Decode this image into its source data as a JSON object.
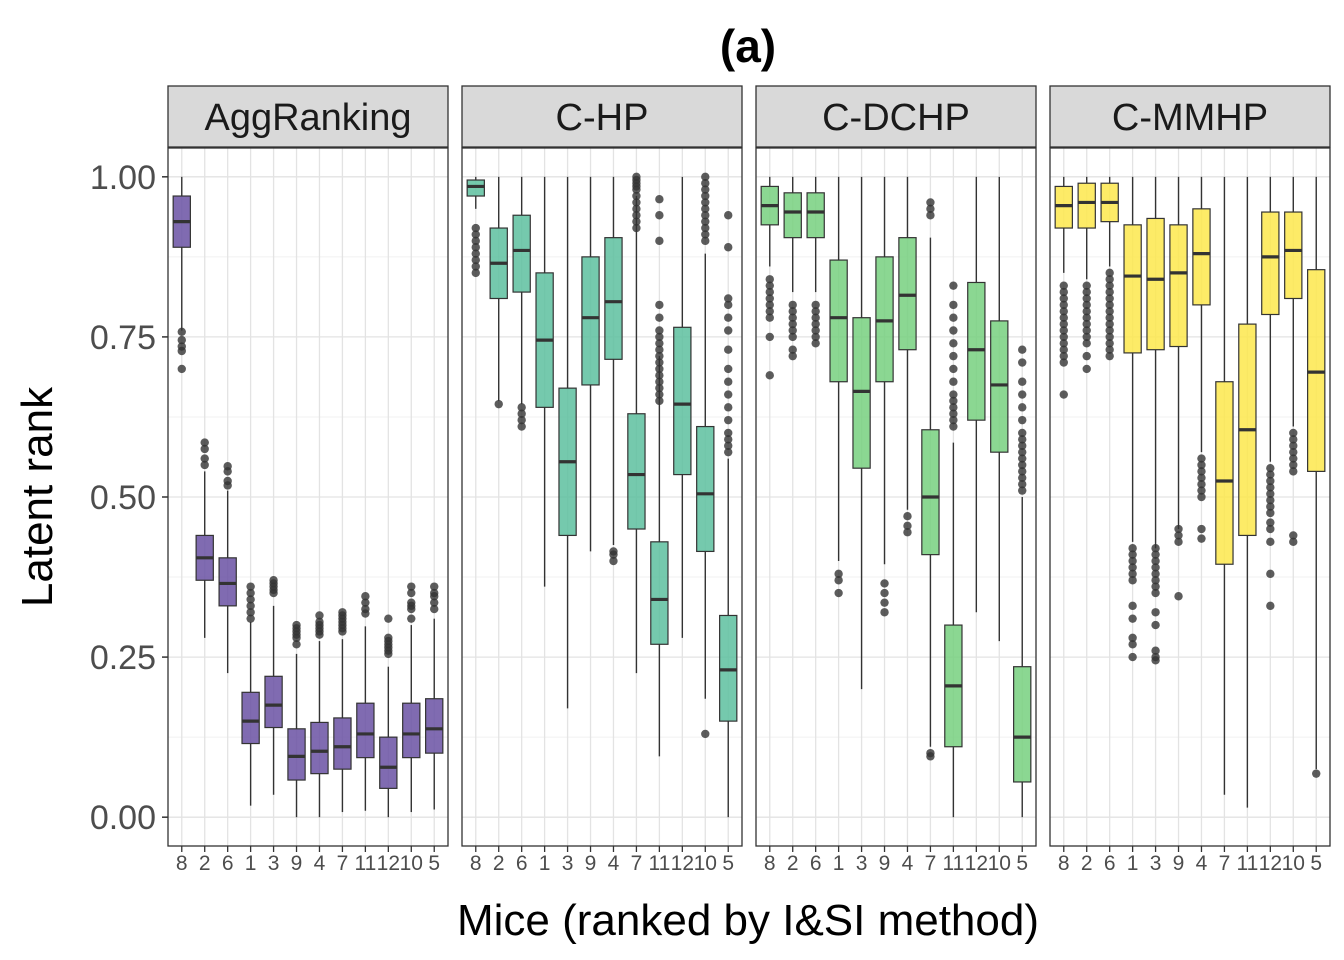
{
  "chart_data": {
    "type": "boxplot",
    "title": "(a)",
    "xlabel": "Mice (ranked by I&SI method)",
    "ylabel": "Latent rank",
    "ylim": [
      -0.045,
      1.045
    ],
    "yticks": [
      0,
      0.25,
      0.5,
      0.75,
      1.0
    ],
    "ytick_labels": [
      "0.00",
      "0.25",
      "0.50",
      "0.75",
      "1.00"
    ],
    "categories": [
      "8",
      "2",
      "6",
      "1",
      "3",
      "9",
      "4",
      "7",
      "11",
      "12",
      "10",
      "5"
    ],
    "panels": [
      {
        "name": "AggRanking",
        "color": "#6A51A3",
        "boxes": [
          {
            "q1": 0.89,
            "med": 0.93,
            "q3": 0.97,
            "lo": 0.76,
            "hi": 1.0,
            "out": [
              0.758,
              0.745,
              0.735,
              0.728,
              0.7
            ]
          },
          {
            "q1": 0.37,
            "med": 0.405,
            "q3": 0.44,
            "lo": 0.28,
            "hi": 0.54,
            "out": [
              0.585,
              0.575,
              0.56,
              0.55
            ]
          },
          {
            "q1": 0.33,
            "med": 0.365,
            "q3": 0.405,
            "lo": 0.225,
            "hi": 0.51,
            "out": [
              0.548,
              0.54,
              0.525,
              0.518
            ]
          },
          {
            "q1": 0.115,
            "med": 0.15,
            "q3": 0.195,
            "lo": 0.018,
            "hi": 0.305,
            "out": [
              0.36,
              0.35,
              0.34,
              0.33,
              0.32,
              0.31
            ]
          },
          {
            "q1": 0.14,
            "med": 0.175,
            "q3": 0.22,
            "lo": 0.035,
            "hi": 0.33,
            "out": [
              0.37,
              0.365,
              0.36,
              0.355,
              0.35
            ]
          },
          {
            "q1": 0.058,
            "med": 0.095,
            "q3": 0.138,
            "lo": 0.0,
            "hi": 0.255,
            "out": [
              0.3,
              0.295,
              0.29,
              0.285,
              0.28,
              0.27
            ]
          },
          {
            "q1": 0.068,
            "med": 0.103,
            "q3": 0.148,
            "lo": 0.0,
            "hi": 0.275,
            "out": [
              0.315,
              0.305,
              0.3,
              0.295,
              0.29,
              0.285
            ]
          },
          {
            "q1": 0.075,
            "med": 0.11,
            "q3": 0.155,
            "lo": 0.008,
            "hi": 0.278,
            "out": [
              0.32,
              0.315,
              0.31,
              0.305,
              0.3,
              0.295,
              0.29
            ]
          },
          {
            "q1": 0.093,
            "med": 0.13,
            "q3": 0.178,
            "lo": 0.01,
            "hi": 0.298,
            "out": [
              0.345,
              0.335,
              0.325,
              0.318
            ]
          },
          {
            "q1": 0.045,
            "med": 0.078,
            "q3": 0.125,
            "lo": 0.0,
            "hi": 0.235,
            "out": [
              0.31,
              0.28,
              0.275,
              0.27,
              0.265,
              0.26,
              0.255
            ]
          },
          {
            "q1": 0.093,
            "med": 0.13,
            "q3": 0.178,
            "lo": 0.008,
            "hi": 0.3,
            "out": [
              0.36,
              0.35,
              0.335,
              0.33,
              0.325,
              0.31
            ]
          },
          {
            "q1": 0.1,
            "med": 0.138,
            "q3": 0.185,
            "lo": 0.012,
            "hi": 0.31,
            "out": [
              0.36,
              0.35,
              0.345,
              0.335,
              0.325
            ]
          }
        ]
      },
      {
        "name": "C-HP",
        "color": "#5DC09F",
        "boxes": [
          {
            "q1": 0.97,
            "med": 0.985,
            "q3": 0.995,
            "lo": 0.95,
            "hi": 1.0,
            "out": [
              0.92,
              0.91,
              0.9,
              0.89,
              0.88,
              0.87,
              0.86,
              0.85
            ]
          },
          {
            "q1": 0.81,
            "med": 0.865,
            "q3": 0.92,
            "lo": 0.65,
            "hi": 1.0,
            "out": [
              0.645
            ]
          },
          {
            "q1": 0.82,
            "med": 0.885,
            "q3": 0.94,
            "lo": 0.645,
            "hi": 1.0,
            "out": [
              0.64,
              0.63,
              0.62,
              0.61
            ]
          },
          {
            "q1": 0.64,
            "med": 0.745,
            "q3": 0.85,
            "lo": 0.36,
            "hi": 1.0,
            "out": []
          },
          {
            "q1": 0.44,
            "med": 0.555,
            "q3": 0.67,
            "lo": 0.17,
            "hi": 1.0,
            "out": []
          },
          {
            "q1": 0.675,
            "med": 0.78,
            "q3": 0.875,
            "lo": 0.415,
            "hi": 1.0,
            "out": []
          },
          {
            "q1": 0.715,
            "med": 0.805,
            "q3": 0.905,
            "lo": 0.425,
            "hi": 1.0,
            "out": [
              0.415,
              0.41,
              0.4
            ]
          },
          {
            "q1": 0.45,
            "med": 0.535,
            "q3": 0.63,
            "lo": 0.225,
            "hi": 0.97,
            "out": [
              1.0,
              0.995,
              0.99,
              0.985,
              0.98,
              0.97,
              0.96,
              0.95,
              0.94,
              0.93,
              0.92
            ]
          },
          {
            "q1": 0.27,
            "med": 0.34,
            "q3": 0.43,
            "lo": 0.095,
            "hi": 0.72,
            "out": [
              0.965,
              0.94,
              0.9,
              0.8,
              0.78,
              0.76,
              0.75,
              0.74,
              0.73,
              0.72,
              0.71,
              0.7,
              0.69,
              0.68,
              0.67,
              0.66,
              0.65
            ]
          },
          {
            "q1": 0.535,
            "med": 0.645,
            "q3": 0.765,
            "lo": 0.28,
            "hi": 1.0,
            "out": []
          },
          {
            "q1": 0.415,
            "med": 0.505,
            "q3": 0.61,
            "lo": 0.185,
            "hi": 0.88,
            "out": [
              1.0,
              0.99,
              0.98,
              0.97,
              0.96,
              0.95,
              0.94,
              0.93,
              0.92,
              0.91,
              0.9,
              0.13
            ]
          },
          {
            "q1": 0.15,
            "med": 0.23,
            "q3": 0.315,
            "lo": 0.0,
            "hi": 0.56,
            "out": [
              0.94,
              0.89,
              0.81,
              0.8,
              0.78,
              0.76,
              0.73,
              0.7,
              0.68,
              0.66,
              0.64,
              0.62,
              0.6,
              0.59,
              0.58,
              0.57
            ]
          }
        ]
      },
      {
        "name": "C-DCHP",
        "color": "#77D07F",
        "boxes": [
          {
            "q1": 0.925,
            "med": 0.955,
            "q3": 0.985,
            "lo": 0.86,
            "hi": 1.0,
            "out": [
              0.84,
              0.83,
              0.82,
              0.81,
              0.8,
              0.79,
              0.78,
              0.75,
              0.69
            ]
          },
          {
            "q1": 0.905,
            "med": 0.945,
            "q3": 0.975,
            "lo": 0.82,
            "hi": 1.0,
            "out": [
              0.8,
              0.79,
              0.78,
              0.77,
              0.76,
              0.75,
              0.73,
              0.72
            ]
          },
          {
            "q1": 0.905,
            "med": 0.945,
            "q3": 0.975,
            "lo": 0.82,
            "hi": 1.0,
            "out": [
              0.8,
              0.79,
              0.78,
              0.77,
              0.76,
              0.75,
              0.74
            ]
          },
          {
            "q1": 0.68,
            "med": 0.78,
            "q3": 0.87,
            "lo": 0.4,
            "hi": 1.0,
            "out": [
              0.38,
              0.37,
              0.35
            ]
          },
          {
            "q1": 0.545,
            "med": 0.665,
            "q3": 0.78,
            "lo": 0.2,
            "hi": 1.0,
            "out": []
          },
          {
            "q1": 0.68,
            "med": 0.775,
            "q3": 0.875,
            "lo": 0.395,
            "hi": 1.0,
            "out": [
              0.365,
              0.35,
              0.335,
              0.32
            ]
          },
          {
            "q1": 0.73,
            "med": 0.815,
            "q3": 0.905,
            "lo": 0.48,
            "hi": 1.0,
            "out": [
              0.47,
              0.455,
              0.445
            ]
          },
          {
            "q1": 0.41,
            "med": 0.5,
            "q3": 0.605,
            "lo": 0.11,
            "hi": 0.905,
            "out": [
              0.96,
              0.95,
              0.94,
              0.1,
              0.095
            ]
          },
          {
            "q1": 0.11,
            "med": 0.205,
            "q3": 0.3,
            "lo": 0.0,
            "hi": 0.585,
            "out": [
              0.83,
              0.8,
              0.78,
              0.76,
              0.74,
              0.72,
              0.7,
              0.68,
              0.66,
              0.65,
              0.64,
              0.63,
              0.62,
              0.61
            ]
          },
          {
            "q1": 0.62,
            "med": 0.73,
            "q3": 0.835,
            "lo": 0.32,
            "hi": 1.0,
            "out": []
          },
          {
            "q1": 0.57,
            "med": 0.675,
            "q3": 0.775,
            "lo": 0.275,
            "hi": 1.0,
            "out": []
          },
          {
            "q1": 0.055,
            "med": 0.125,
            "q3": 0.235,
            "lo": 0.0,
            "hi": 0.5,
            "out": [
              0.73,
              0.71,
              0.68,
              0.66,
              0.64,
              0.62,
              0.6,
              0.59,
              0.58,
              0.57,
              0.56,
              0.55,
              0.54,
              0.53,
              0.52,
              0.51
            ]
          }
        ]
      },
      {
        "name": "C-MMHP",
        "color": "#FDE74C",
        "boxes": [
          {
            "q1": 0.92,
            "med": 0.955,
            "q3": 0.985,
            "lo": 0.85,
            "hi": 1.0,
            "out": [
              0.83,
              0.82,
              0.81,
              0.8,
              0.79,
              0.78,
              0.77,
              0.76,
              0.75,
              0.74,
              0.73,
              0.72,
              0.71,
              0.66
            ]
          },
          {
            "q1": 0.92,
            "med": 0.96,
            "q3": 0.99,
            "lo": 0.84,
            "hi": 1.0,
            "out": [
              0.83,
              0.82,
              0.81,
              0.8,
              0.79,
              0.78,
              0.77,
              0.76,
              0.75,
              0.74,
              0.72,
              0.7
            ]
          },
          {
            "q1": 0.93,
            "med": 0.96,
            "q3": 0.99,
            "lo": 0.86,
            "hi": 1.0,
            "out": [
              0.85,
              0.84,
              0.83,
              0.82,
              0.81,
              0.8,
              0.79,
              0.78,
              0.77,
              0.76,
              0.75,
              0.74,
              0.73,
              0.72
            ]
          },
          {
            "q1": 0.725,
            "med": 0.845,
            "q3": 0.925,
            "lo": 0.43,
            "hi": 1.0,
            "out": [
              0.42,
              0.41,
              0.4,
              0.39,
              0.38,
              0.37,
              0.33,
              0.31,
              0.28,
              0.27,
              0.25
            ]
          },
          {
            "q1": 0.73,
            "med": 0.84,
            "q3": 0.935,
            "lo": 0.42,
            "hi": 1.0,
            "out": [
              0.42,
              0.41,
              0.4,
              0.39,
              0.38,
              0.37,
              0.36,
              0.35,
              0.32,
              0.3,
              0.26,
              0.25,
              0.245
            ]
          },
          {
            "q1": 0.735,
            "med": 0.85,
            "q3": 0.925,
            "lo": 0.45,
            "hi": 1.0,
            "out": [
              0.45,
              0.44,
              0.43,
              0.345
            ]
          },
          {
            "q1": 0.8,
            "med": 0.88,
            "q3": 0.95,
            "lo": 0.57,
            "hi": 1.0,
            "out": [
              0.56,
              0.55,
              0.54,
              0.53,
              0.52,
              0.51,
              0.5,
              0.45,
              0.435
            ]
          },
          {
            "q1": 0.395,
            "med": 0.525,
            "q3": 0.68,
            "lo": 0.035,
            "hi": 1.0,
            "out": []
          },
          {
            "q1": 0.44,
            "med": 0.605,
            "q3": 0.77,
            "lo": 0.015,
            "hi": 1.0,
            "out": []
          },
          {
            "q1": 0.785,
            "med": 0.875,
            "q3": 0.945,
            "lo": 0.555,
            "hi": 1.0,
            "out": [
              0.545,
              0.535,
              0.525,
              0.515,
              0.505,
              0.495,
              0.485,
              0.475,
              0.46,
              0.45,
              0.43,
              0.38,
              0.33
            ]
          },
          {
            "q1": 0.81,
            "med": 0.885,
            "q3": 0.945,
            "lo": 0.61,
            "hi": 1.0,
            "out": [
              0.6,
              0.59,
              0.58,
              0.57,
              0.56,
              0.55,
              0.54,
              0.44,
              0.43
            ]
          },
          {
            "q1": 0.54,
            "med": 0.695,
            "q3": 0.855,
            "lo": 0.075,
            "hi": 1.0,
            "out": [
              0.068
            ]
          }
        ]
      }
    ]
  }
}
